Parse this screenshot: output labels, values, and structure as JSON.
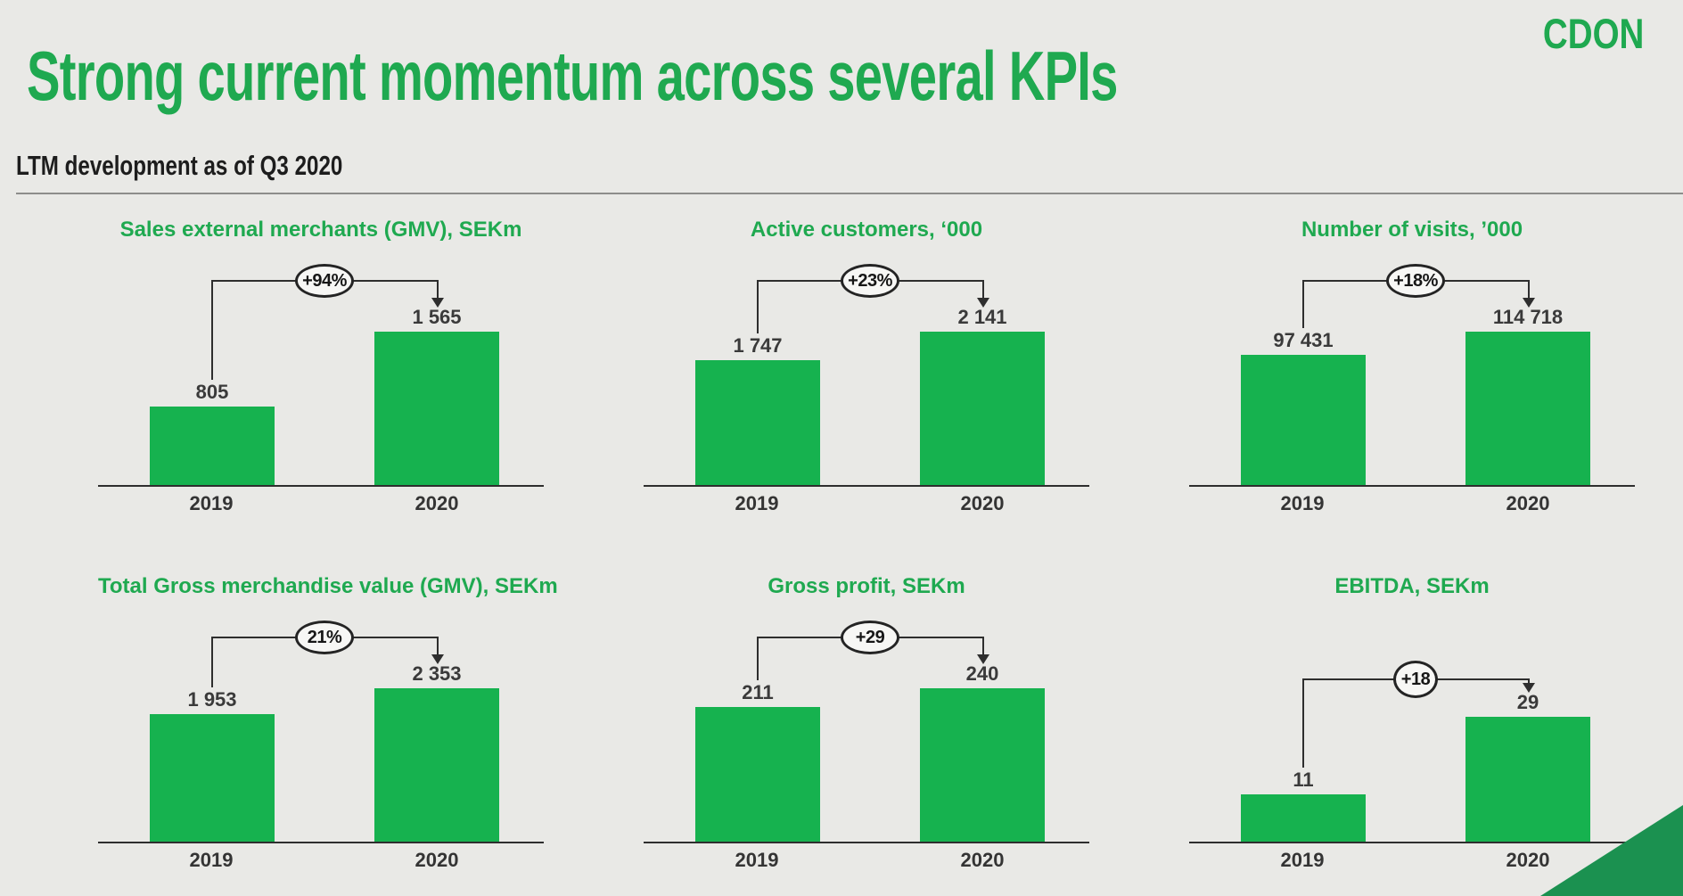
{
  "page": {
    "title": "Strong current momentum across several KPIs",
    "subtitle": "LTM development as of Q3 2020",
    "logo": "CDON"
  },
  "colors": {
    "background": "#e9e9e6",
    "brand_green_text": "#1fa950",
    "bar_green": "#16b24f",
    "corner_triangle_green": "#1b9150",
    "dark_text": "#3a3a3a",
    "line_black": "#2e2e2e"
  },
  "chart_data": [
    {
      "type": "bar",
      "title": "Sales external merchants (GMV), SEKm",
      "categories": [
        "2019",
        "2020"
      ],
      "values": [
        805,
        1565
      ],
      "value_labels": [
        "805",
        "1 565"
      ],
      "change_label": "+94%"
    },
    {
      "type": "bar",
      "title": "Active customers, ‘000",
      "categories": [
        "2019",
        "2020"
      ],
      "values": [
        1747,
        2141
      ],
      "value_labels": [
        "1 747",
        "2 141"
      ],
      "change_label": "+23%"
    },
    {
      "type": "bar",
      "title": "Number of visits, ’000",
      "categories": [
        "2019",
        "2020"
      ],
      "values": [
        97431,
        114718
      ],
      "value_labels": [
        "97 431",
        "114 718"
      ],
      "change_label": "+18%"
    },
    {
      "type": "bar",
      "title": "Total Gross merchandise value (GMV), SEKm",
      "categories": [
        "2019",
        "2020"
      ],
      "values": [
        1953,
        2353
      ],
      "value_labels": [
        "1 953",
        "2 353"
      ],
      "change_label": "21%"
    },
    {
      "type": "bar",
      "title": "Gross profit, SEKm",
      "categories": [
        "2019",
        "2020"
      ],
      "values": [
        211,
        240
      ],
      "value_labels": [
        "211",
        "240"
      ],
      "change_label": "+29"
    },
    {
      "type": "bar",
      "title": "EBITDA, SEKm",
      "categories": [
        "2019",
        "2020"
      ],
      "values": [
        11,
        29
      ],
      "value_labels": [
        "11",
        "29"
      ],
      "change_label": "+18"
    }
  ]
}
